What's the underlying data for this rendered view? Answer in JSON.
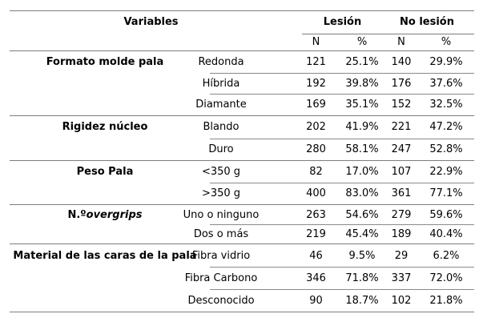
{
  "table": {
    "header": {
      "variables": "Variables",
      "lesion": "Lesión",
      "no_lesion": "No lesión",
      "n": "N",
      "pct": "%"
    },
    "colors": {
      "line": "#7d7d7d",
      "text": "#000000",
      "background": "#ffffff"
    },
    "groups": [
      {
        "variable": "Formato molde pala",
        "rows": [
          {
            "category": "Redonda",
            "lesion_n": "121",
            "lesion_pct": "25.1%",
            "nolesion_n": "140",
            "nolesion_pct": "29.9%"
          },
          {
            "category": "Híbrida",
            "lesion_n": "192",
            "lesion_pct": "39.8%",
            "nolesion_n": "176",
            "nolesion_pct": "37.6%"
          },
          {
            "category": "Diamante",
            "lesion_n": "169",
            "lesion_pct": "35.1%",
            "nolesion_n": "152",
            "nolesion_pct": "32.5%"
          }
        ]
      },
      {
        "variable": "Rigidez núcleo",
        "rows": [
          {
            "category": "Blando",
            "lesion_n": "202",
            "lesion_pct": "41.9%",
            "nolesion_n": "221",
            "nolesion_pct": "47.2%"
          },
          {
            "category": "Duro",
            "lesion_n": "280",
            "lesion_pct": "58.1%",
            "nolesion_n": "247",
            "nolesion_pct": "52.8%"
          }
        ]
      },
      {
        "variable": "Peso Pala",
        "rows": [
          {
            "category": "<350 g",
            "lesion_n": "82",
            "lesion_pct": "17.0%",
            "nolesion_n": "107",
            "nolesion_pct": "22.9%"
          },
          {
            "category": ">350 g",
            "lesion_n": "400",
            "lesion_pct": "83.0%",
            "nolesion_n": "361",
            "nolesion_pct": "77.1%"
          }
        ]
      },
      {
        "variable": "N.º ",
        "variable_italic": "overgrips",
        "rows": [
          {
            "category": "Uno o ninguno",
            "lesion_n": "263",
            "lesion_pct": "54.6%",
            "nolesion_n": "279",
            "nolesion_pct": "59.6%"
          },
          {
            "category": "Dos o más",
            "lesion_n": "219",
            "lesion_pct": "45.4%",
            "nolesion_n": "189",
            "nolesion_pct": "40.4%"
          }
        ]
      },
      {
        "variable": "Material de las caras de la pala",
        "rows": [
          {
            "category": "Fibra vidrio",
            "lesion_n": "46",
            "lesion_pct": "9.5%",
            "nolesion_n": "29",
            "nolesion_pct": "6.2%"
          },
          {
            "category": "Fibra Carbono",
            "lesion_n": "346",
            "lesion_pct": "71.8%",
            "nolesion_n": "337",
            "nolesion_pct": "72.0%"
          },
          {
            "category": "Desconocido",
            "lesion_n": "90",
            "lesion_pct": "18.7%",
            "nolesion_n": "102",
            "nolesion_pct": "21.8%"
          }
        ]
      }
    ]
  }
}
